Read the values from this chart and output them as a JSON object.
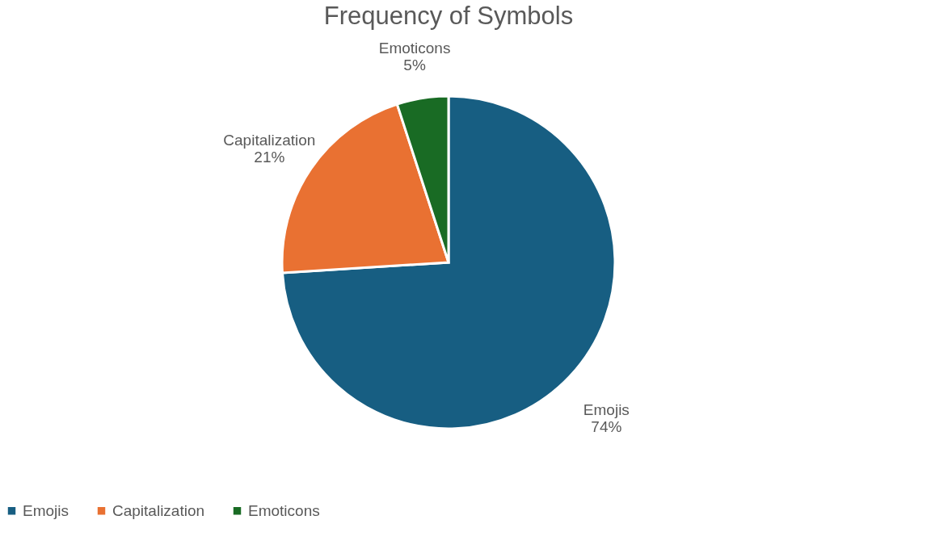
{
  "chart_data": {
    "type": "pie",
    "title": "Frequency of Symbols",
    "categories": [
      "Emojis",
      "Capitalization",
      "Emoticons"
    ],
    "values": [
      74,
      21,
      5
    ],
    "colors": [
      "#175e82",
      "#e97132",
      "#196b24"
    ],
    "value_labels": [
      "74%",
      "21%",
      "5%"
    ],
    "legend": "bottom"
  }
}
